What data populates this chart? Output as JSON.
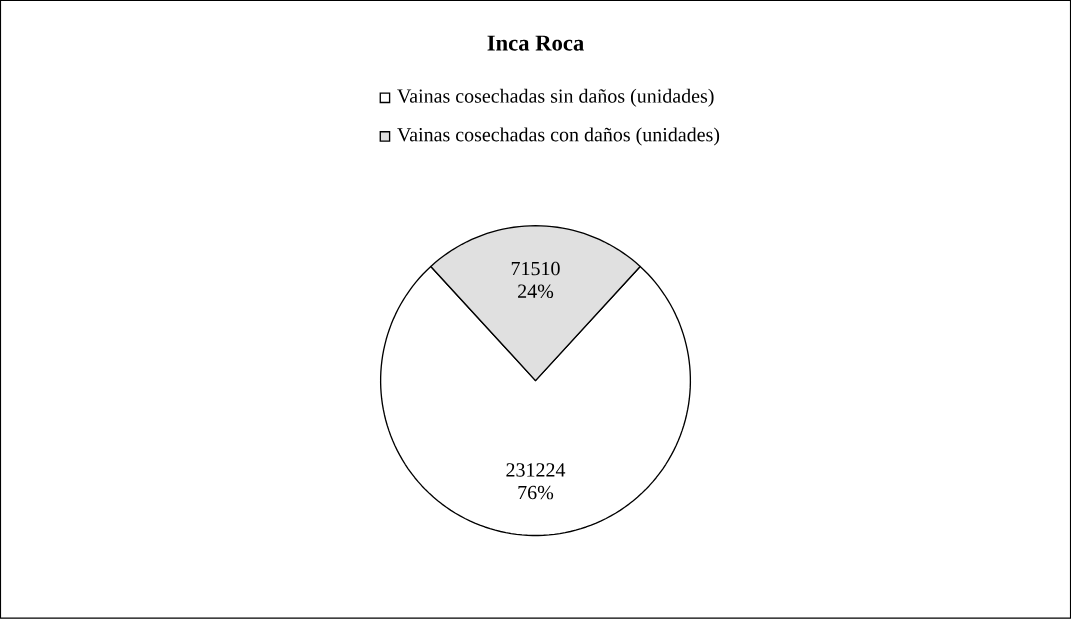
{
  "chart_data": {
    "type": "pie",
    "title": "Inca Roca",
    "categories": [
      "Vainas cosechadas sin daños (unidades)",
      "Vainas cosechadas con daños (unidades)"
    ],
    "values": [
      231224,
      71510
    ],
    "colors": [
      "#ffffff",
      "#e0e0e0"
    ],
    "value_labels": [
      "231224 76%",
      "71510 24%"
    ],
    "legend": "top"
  }
}
